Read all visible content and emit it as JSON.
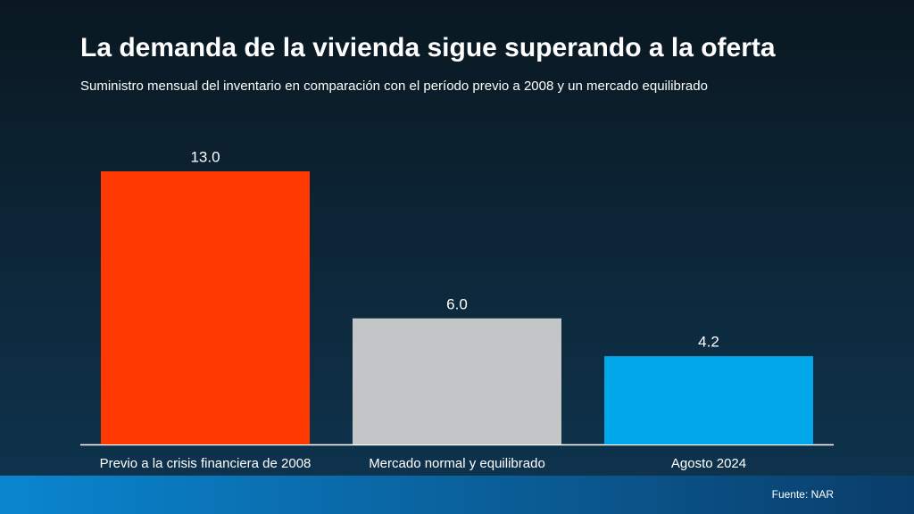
{
  "chart_data": {
    "type": "bar",
    "title": "La demanda de la vivienda sigue superando a la oferta",
    "subtitle": "Suministro mensual del inventario en comparación con el período previo a 2008 y un mercado equilibrado",
    "categories": [
      "Previo a la crisis financiera de 2008",
      "Mercado normal y equilibrado",
      "Agosto 2024"
    ],
    "values": [
      13.0,
      6.0,
      4.2
    ],
    "value_labels": [
      "13.0",
      "6.0",
      "4.2"
    ],
    "colors": [
      "#ff3a00",
      "#c3c5c6",
      "#00a8ea"
    ],
    "source": "Fuente: NAR"
  }
}
